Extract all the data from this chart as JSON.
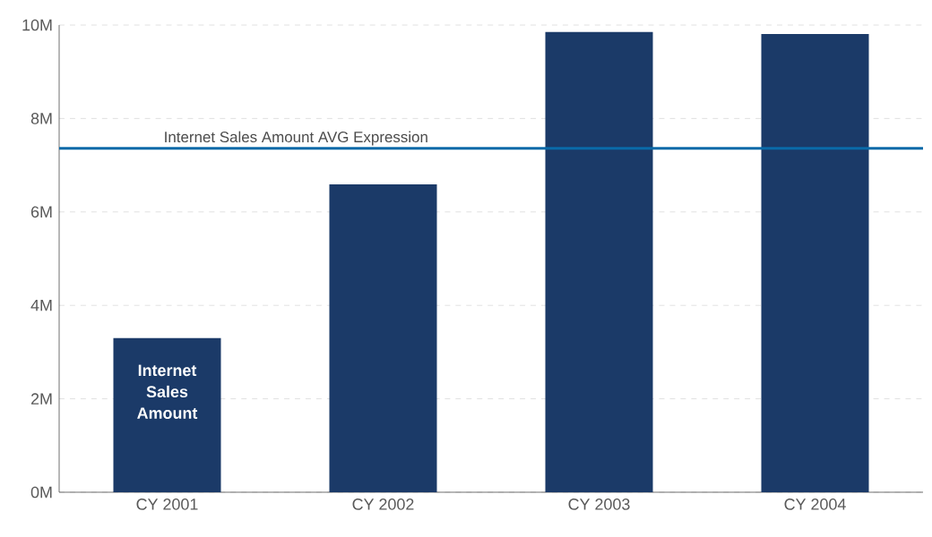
{
  "chart_data": {
    "type": "bar",
    "categories": [
      "CY 2001",
      "CY 2002",
      "CY 2003",
      "CY 2004"
    ],
    "series": [
      {
        "name": "Internet Sales Amount",
        "color": "#1b3a68",
        "values": [
          3.3,
          6.59,
          9.85,
          9.81
        ]
      }
    ],
    "ylim": [
      0,
      10
    ],
    "yticks": [
      {
        "value": 0,
        "label": "0M"
      },
      {
        "value": 2,
        "label": "2M"
      },
      {
        "value": 4,
        "label": "4M"
      },
      {
        "value": 6,
        "label": "6M"
      },
      {
        "value": 8,
        "label": "8M"
      },
      {
        "value": 10,
        "label": "10M"
      }
    ],
    "grid": "y",
    "ref_lines": [
      {
        "axis": "y",
        "value": 7.36,
        "label": "Internet Sales Amount AVG Expression",
        "color": "#0a6aa8"
      }
    ]
  }
}
